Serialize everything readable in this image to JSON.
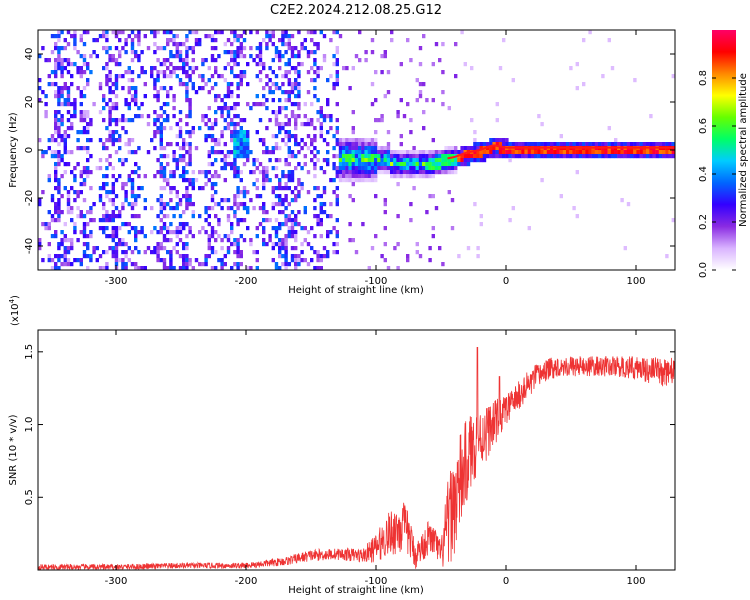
{
  "title": "C2E2.2024.212.08.25.G12",
  "chart_data": [
    {
      "type": "heatmap",
      "xlabel": "Height of straight line (km)",
      "ylabel": "Frequency (Hz)",
      "xlim": [
        -360,
        130
      ],
      "ylim": [
        -50,
        50
      ],
      "xticks": [
        -300,
        -200,
        -100,
        0,
        100
      ],
      "yticks": [
        -40,
        -20,
        0,
        20,
        40
      ],
      "colorbar": {
        "label": "Normalized spectral amplitude",
        "range": [
          0,
          1
        ],
        "ticks": [
          "0.0",
          "0.2",
          "0.4",
          "0.6",
          "0.8"
        ],
        "colors": [
          "#ffffff",
          "#d9b3ff",
          "#8a2be2",
          "#3300ff",
          "#0066ff",
          "#00ccff",
          "#00ff66",
          "#66ff00",
          "#ffff00",
          "#ff8800",
          "#ff0000",
          "#ff0066"
        ]
      },
      "regions": [
        {
          "x": [
            -360,
            -130
          ],
          "freq_spread": [
            -50,
            50
          ],
          "amplitude": "low (0.0-0.3), broadband noise"
        },
        {
          "x": [
            -130,
            -40
          ],
          "freq_center": -4,
          "amplitude": "0.2-0.6"
        },
        {
          "x": [
            -40,
            130
          ],
          "freq_center": 0,
          "amplitude": "0.8-1.0 narrow carrier line"
        }
      ],
      "carrier_line": {
        "x": [
          -70,
          -60,
          -50,
          -40,
          -30,
          -20,
          -10,
          0,
          20,
          60,
          100,
          130
        ],
        "y": [
          -5,
          -5,
          -4,
          -3,
          -1,
          0,
          2,
          1,
          1,
          1,
          1,
          1
        ]
      }
    },
    {
      "type": "line",
      "xlabel": "Height of straight line (km)",
      "ylabel": "SNR (10 * v/v)",
      "y_multiplier_base": "(x10",
      "y_multiplier_exp": "4",
      "y_multiplier_close": ")",
      "xlim": [
        -360,
        130
      ],
      "ylim": [
        0,
        1.65
      ],
      "xticks": [
        -300,
        -200,
        -100,
        0,
        100
      ],
      "yticks": [
        "0.5",
        "1.0",
        "1.5"
      ],
      "series": [
        {
          "color": "#ee3333",
          "x": [
            -360,
            -300,
            -250,
            -200,
            -170,
            -150,
            -130,
            -110,
            -100,
            -90,
            -80,
            -75,
            -70,
            -65,
            -60,
            -55,
            -50,
            -45,
            -40,
            -35,
            -30,
            -25,
            -20,
            -15,
            -10,
            -5,
            0,
            10,
            20,
            30,
            40,
            60,
            80,
            100,
            120,
            130
          ],
          "y": [
            0.02,
            0.02,
            0.03,
            0.03,
            0.06,
            0.1,
            0.11,
            0.1,
            0.15,
            0.25,
            0.3,
            0.25,
            0.1,
            0.15,
            0.22,
            0.2,
            0.1,
            0.3,
            0.45,
            0.6,
            0.75,
            0.85,
            0.9,
            0.95,
            1.0,
            1.05,
            1.1,
            1.2,
            1.3,
            1.37,
            1.4,
            1.4,
            1.4,
            1.39,
            1.36,
            1.37
          ],
          "noise_amplitude": [
            0.02,
            0.02,
            0.02,
            0.02,
            0.03,
            0.04,
            0.04,
            0.05,
            0.1,
            0.15,
            0.2,
            0.15,
            0.1,
            0.1,
            0.12,
            0.1,
            0.1,
            0.3,
            0.35,
            0.35,
            0.3,
            0.25,
            0.2,
            0.2,
            0.15,
            0.15,
            0.1,
            0.1,
            0.1,
            0.08,
            0.07,
            0.07,
            0.07,
            0.08,
            0.1,
            0.1
          ],
          "spikes": [
            {
              "x": -22,
              "y": 1.53
            },
            {
              "x": -5,
              "y": 1.33
            }
          ]
        }
      ]
    }
  ]
}
